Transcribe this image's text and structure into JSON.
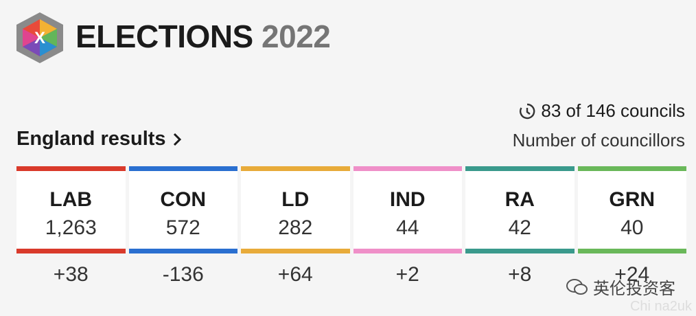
{
  "header": {
    "title": "ELECTIONS",
    "year": "2022",
    "logo_letter": "X"
  },
  "progress": "83 of 146 councils",
  "section": {
    "title": "England results",
    "unit": "Number of councillors"
  },
  "parties": [
    {
      "name": "LAB",
      "color": "#d93a2b",
      "seats": "1,263",
      "change": "+38"
    },
    {
      "name": "CON",
      "color": "#2a6fd0",
      "seats": "572",
      "change": "-136"
    },
    {
      "name": "LD",
      "color": "#e8ab3a",
      "seats": "282",
      "change": "+64"
    },
    {
      "name": "IND",
      "color": "#ef8fc8",
      "seats": "44",
      "change": "+2"
    },
    {
      "name": "RA",
      "color": "#3a9a8c",
      "seats": "42",
      "change": "+8"
    },
    {
      "name": "GRN",
      "color": "#6ab85a",
      "seats": "40",
      "change": "+24"
    }
  ],
  "watermark": {
    "name": "英伦投资客",
    "handle": "Chi na2uk"
  }
}
